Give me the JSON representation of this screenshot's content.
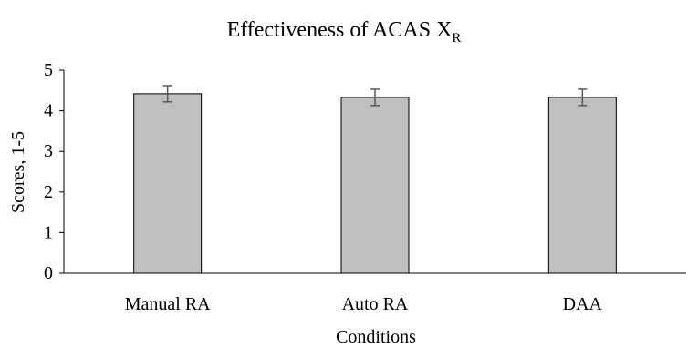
{
  "chart_data": {
    "type": "bar",
    "title": "Effectiveness of ACAS X",
    "title_subscript": "R",
    "xlabel": "Conditions",
    "ylabel": "Scores, 1-5",
    "categories": [
      "Manual RA",
      "Auto RA",
      "DAA"
    ],
    "values": [
      4.42,
      4.33,
      4.33
    ],
    "error": [
      0.2,
      0.2,
      0.2
    ],
    "ylim": [
      0,
      5
    ],
    "yticks": [
      0,
      1,
      2,
      3,
      4,
      5
    ],
    "grid": false,
    "bar_color": "#bfbfbf",
    "bar_edge_color": "#000000",
    "errorbar_color": "#595959"
  }
}
